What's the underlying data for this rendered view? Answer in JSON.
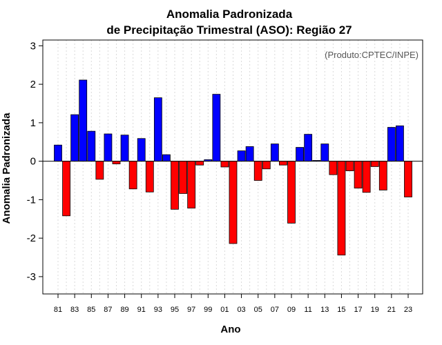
{
  "chart_data": {
    "type": "bar",
    "title": "Anomalia Padronizada",
    "subtitle": "de Precipitação Trimestral (ASO): Região 27",
    "xlabel": "Ano",
    "ylabel": "Anomalia Padronizada",
    "credit": "(Produto:CPTEC/INPE)",
    "ylim": [
      -3.45,
      3.15
    ],
    "yticks": [
      -3,
      -2,
      -1,
      0,
      1,
      2,
      3
    ],
    "x_tick_labels": [
      "81",
      "83",
      "85",
      "87",
      "89",
      "91",
      "93",
      "95",
      "97",
      "99",
      "01",
      "03",
      "05",
      "07",
      "09",
      "11",
      "13",
      "15",
      "17",
      "19",
      "21",
      "23"
    ],
    "years": [
      1981,
      1982,
      1983,
      1984,
      1985,
      1986,
      1987,
      1988,
      1989,
      1990,
      1991,
      1992,
      1993,
      1994,
      1995,
      1996,
      1997,
      1998,
      1999,
      2000,
      2001,
      2002,
      2003,
      2004,
      2005,
      2006,
      2007,
      2008,
      2009,
      2010,
      2011,
      2012,
      2013,
      2014,
      2015,
      2016,
      2017,
      2018,
      2019,
      2020,
      2021,
      2022,
      2023
    ],
    "values": [
      0.42,
      -1.42,
      1.21,
      2.11,
      0.78,
      -0.47,
      0.71,
      -0.07,
      0.68,
      -0.72,
      0.59,
      -0.8,
      1.65,
      0.17,
      -1.25,
      -0.84,
      -1.22,
      -0.1,
      0.04,
      1.74,
      -0.15,
      -2.14,
      0.27,
      0.38,
      -0.5,
      -0.2,
      0.45,
      -0.1,
      -1.61,
      0.36,
      0.7,
      0.02,
      0.45,
      -0.35,
      -2.44,
      -0.25,
      -0.7,
      -0.81,
      -0.14,
      -0.75,
      0.88,
      0.92,
      -0.93
    ],
    "colors": {
      "positive": "#0000ff",
      "negative": "#ff0000",
      "grid": "#d9d9d9",
      "frame": "#000000"
    },
    "grid": true
  }
}
